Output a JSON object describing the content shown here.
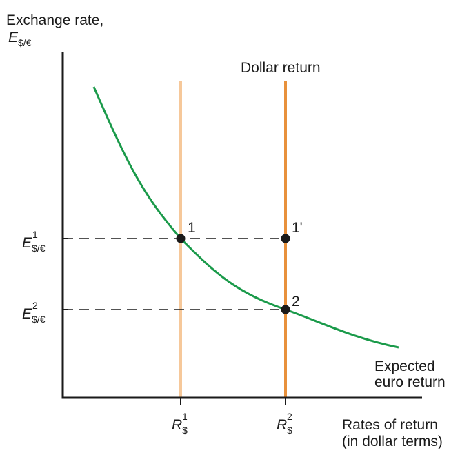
{
  "y_axis": {
    "title_line1": "Exchange rate,",
    "title_symbol": "E",
    "title_sub": "$/€"
  },
  "x_axis": {
    "title_line1": "Rates of return",
    "title_line2": "(in dollar terms)"
  },
  "dollar_return_label": "Dollar return",
  "curve_label": {
    "line1": "Expected",
    "line2": "euro return"
  },
  "points": {
    "p1": "1",
    "p1_prime": "1'",
    "p2": "2"
  },
  "y_ticks": [
    {
      "symbol": "E",
      "sub": "$/€",
      "sup": "1"
    },
    {
      "symbol": "E",
      "sub": "$/€",
      "sup": "2"
    }
  ],
  "x_ticks": [
    {
      "symbol": "R",
      "sub": "$",
      "sup": "1"
    },
    {
      "symbol": "R",
      "sub": "$",
      "sup": "2"
    }
  ],
  "colors": {
    "curve": "#1a9a4a",
    "dollar_return_1": "#f6c89a",
    "dollar_return_2": "#e8913c",
    "axes": "#1a1a1a",
    "points": "#1a1a1a"
  }
}
